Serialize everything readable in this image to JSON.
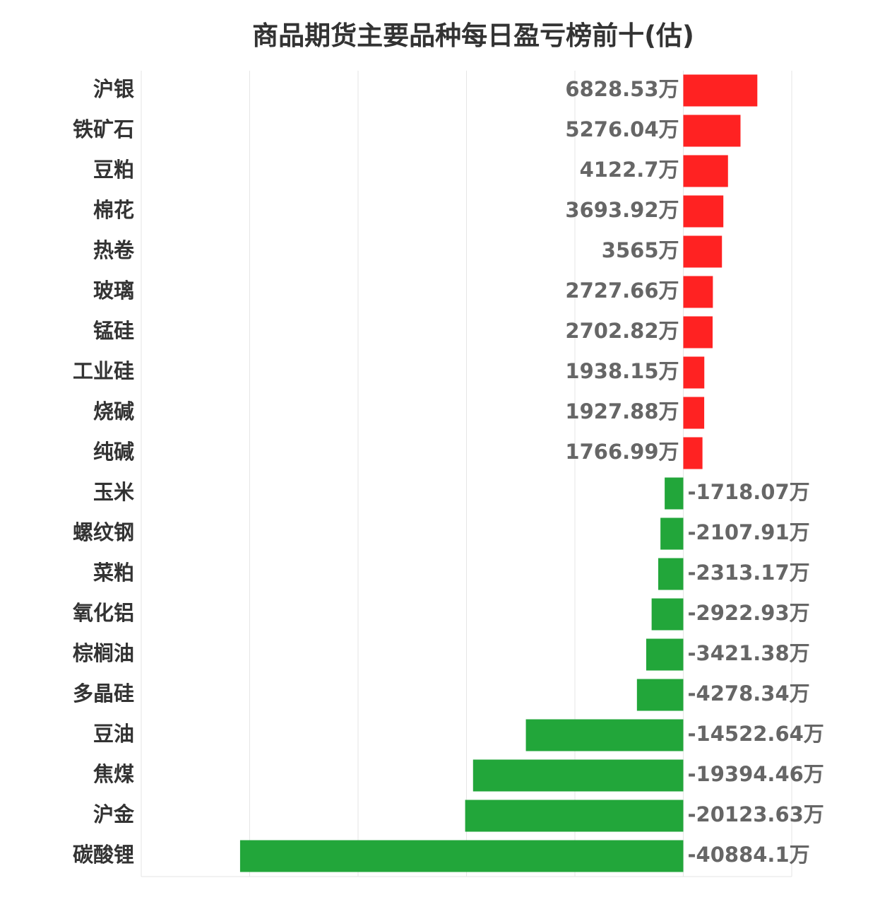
{
  "chart_data": {
    "type": "bar",
    "orientation": "horizontal",
    "title": "商品期货主要品种每日盈亏榜前十(估)",
    "unit_suffix": "万",
    "categories": [
      "沪银",
      "铁矿石",
      "豆粕",
      "棉花",
      "热卷",
      "玻璃",
      "锰硅",
      "工业硅",
      "烧碱",
      "纯碱",
      "玉米",
      "螺纹钢",
      "菜粕",
      "氧化铝",
      "棕榈油",
      "多晶硅",
      "豆油",
      "焦煤",
      "沪金",
      "碳酸锂"
    ],
    "values": [
      6828.53,
      5276.04,
      4122.7,
      3693.92,
      3565,
      2727.66,
      2702.82,
      1938.15,
      1927.88,
      1766.99,
      -1718.07,
      -2107.91,
      -2313.17,
      -2922.93,
      -3421.38,
      -4278.34,
      -14522.64,
      -19394.46,
      -20123.63,
      -40884.1
    ],
    "value_labels": [
      "6828.53万",
      "5276.04万",
      "4122.7万",
      "3693.92万",
      "3565万",
      "2727.66万",
      "2702.82万",
      "1938.15万",
      "1927.88万",
      "1766.99万",
      "-1718.07万",
      "-2107.91万",
      "-2313.17万",
      "-2922.93万",
      "-3421.38万",
      "-4278.34万",
      "-14522.64万",
      "-19394.46万",
      "-20123.63万",
      "-40884.1万"
    ],
    "xlim": [
      -50000,
      10000
    ],
    "grid": true,
    "colors": {
      "positive": "#ff2222",
      "negative": "#22a63a",
      "grid": "#e6e6e6",
      "category_text": "#333333",
      "value_text": "#666666"
    }
  }
}
